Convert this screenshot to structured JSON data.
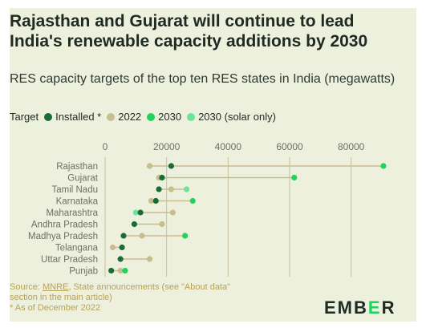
{
  "title": "Rajasthan and Gujarat will continue to lead India's renewable capacity additions by 2030",
  "subtitle": "RES capacity targets of the top ten RES states in India (megawatts)",
  "legend": {
    "label": "Target",
    "installed": "Installed *",
    "y2022": "2022",
    "y2030": "2030",
    "solar": "2030 (solar only)"
  },
  "colors": {
    "installed": "#1a6b35",
    "y2022": "#c7bd8d",
    "y2030": "#21d35b",
    "solar": "#6de49a",
    "range_line": "#c9bd8f"
  },
  "footer": {
    "source_prefix": "Source: ",
    "source_link": "MNRE",
    "source_rest": ", State announcements (see \"About data\"",
    "line2": "section in the main article)",
    "line3": "* As of December 2022"
  },
  "logo": {
    "part1": "EMB",
    "accent": "E",
    "part2": "R"
  },
  "chart_data": {
    "type": "scatter",
    "xlim": [
      0,
      90000
    ],
    "xticks": [
      0,
      20000,
      40000,
      60000,
      80000
    ],
    "xtick_labels": [
      "0",
      "20000",
      "40000",
      "60000",
      "80000"
    ],
    "grid": true,
    "legend_placement": "top-left",
    "categories": [
      "Rajasthan",
      "Gujarat",
      "Tamil Nadu",
      "Karnataka",
      "Maharashtra",
      "Andhra Pradesh",
      "Madhya Pradesh",
      "Telangana",
      "Uttar Pradesh",
      "Punjab"
    ],
    "series": [
      {
        "name": "Installed *",
        "key": "installed",
        "values": [
          21500,
          18500,
          17500,
          16500,
          11500,
          9500,
          6000,
          5500,
          5000,
          2000
        ]
      },
      {
        "name": "2022",
        "key": "y2022",
        "values": [
          14500,
          17500,
          21500,
          15000,
          22000,
          18500,
          12000,
          2500,
          14500,
          5000
        ]
      },
      {
        "name": "2030",
        "key": "y2030",
        "values": [
          90500,
          61500,
          null,
          28500,
          null,
          null,
          26000,
          null,
          null,
          6500
        ]
      },
      {
        "name": "2030 (solar only)",
        "key": "solar",
        "values": [
          null,
          null,
          26500,
          null,
          10000,
          null,
          null,
          null,
          null,
          null
        ]
      }
    ]
  }
}
